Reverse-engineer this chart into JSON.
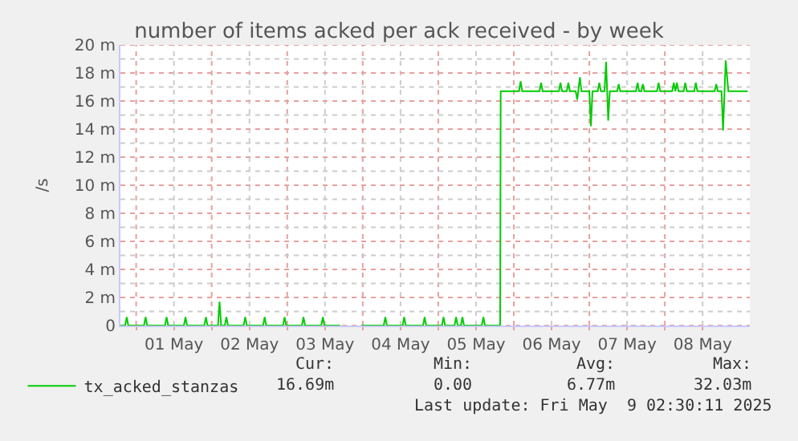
{
  "chart_data": {
    "type": "line",
    "title": "number of items acked per ack received - by week",
    "ylabel": "/s",
    "xlim": [
      "2025-04-30T19:00",
      "2025-05-09T03:00"
    ],
    "xticks": [
      {
        "value": "2025-05-01T00:00",
        "label": null
      },
      {
        "value": "2025-05-01T12:00",
        "label": "01 May"
      },
      {
        "value": "2025-05-02T00:00",
        "label": null
      },
      {
        "value": "2025-05-02T12:00",
        "label": "02 May"
      },
      {
        "value": "2025-05-03T00:00",
        "label": null
      },
      {
        "value": "2025-05-03T12:00",
        "label": "03 May"
      },
      {
        "value": "2025-05-04T00:00",
        "label": null
      },
      {
        "value": "2025-05-04T12:00",
        "label": "04 May"
      },
      {
        "value": "2025-05-05T00:00",
        "label": null
      },
      {
        "value": "2025-05-05T12:00",
        "label": "05 May"
      },
      {
        "value": "2025-05-06T00:00",
        "label": null
      },
      {
        "value": "2025-05-06T12:00",
        "label": "06 May"
      },
      {
        "value": "2025-05-07T00:00",
        "label": null
      },
      {
        "value": "2025-05-07T12:00",
        "label": "07 May"
      },
      {
        "value": "2025-05-08T00:00",
        "label": null
      },
      {
        "value": "2025-05-08T12:00",
        "label": "08 May"
      }
    ],
    "ylim": [
      0,
      20
    ],
    "yticks": [
      0,
      {
        "value": 2,
        "label": "2 m"
      },
      {
        "value": 4,
        "label": "4 m"
      },
      {
        "value": 6,
        "label": "6 m"
      },
      {
        "value": 8,
        "label": "8 m"
      },
      {
        "value": 10,
        "label": "10 m"
      },
      {
        "value": 12,
        "label": "12 m"
      },
      {
        "value": 14,
        "label": "14 m"
      },
      {
        "value": 16,
        "label": "16 m"
      },
      {
        "value": 18,
        "label": "18 m"
      },
      {
        "value": 20,
        "label": "20 m"
      }
    ],
    "grid": true,
    "legend": "bottom left",
    "marker": "none",
    "line_style": "solid",
    "annotations": [
      "Cur:",
      "Min:",
      "Avg:",
      "Max:",
      "16.69m",
      "0.00",
      "6.77m",
      "32.03m",
      "Last update: Fri May  9 02:30:11 2025"
    ],
    "series": [
      {
        "name": "tx_acked_stanzas",
        "color": "#00cc00",
        "x": [
          "2025-04-30T19:00",
          "2025-04-30T20:30",
          "2025-04-30T21:00",
          "2025-04-30T21:30",
          "2025-05-01T02:30",
          "2025-05-01T03:00",
          "2025-05-01T03:30",
          "2025-05-01T09:10",
          "2025-05-01T09:40",
          "2025-05-01T10:10",
          "2025-05-01T15:10",
          "2025-05-01T15:40",
          "2025-05-01T16:10",
          "2025-05-01T21:40",
          "2025-05-01T22:10",
          "2025-05-01T22:40",
          "2025-05-02T02:00",
          "2025-05-02T02:30",
          "2025-05-02T03:00",
          "2025-05-02T04:10",
          "2025-05-02T04:40",
          "2025-05-02T05:10",
          "2025-05-02T10:10",
          "2025-05-02T10:40",
          "2025-05-02T11:10",
          "2025-05-02T16:20",
          "2025-05-02T16:50",
          "2025-05-02T17:20",
          "2025-05-02T22:40",
          "2025-05-02T23:10",
          "2025-05-02T23:40",
          "2025-05-03T04:40",
          "2025-05-03T05:10",
          "2025-05-03T05:40",
          "2025-05-03T10:50",
          "2025-05-03T11:20",
          "2025-05-03T11:50",
          "2025-05-03T16:50",
          "2025-05-03T20:00",
          "2025-05-03T23:30",
          "2025-05-04T06:40",
          "2025-05-04T07:10",
          "2025-05-04T07:40",
          "2025-05-04T12:40",
          "2025-05-04T13:10",
          "2025-05-04T13:40",
          "2025-05-04T19:10",
          "2025-05-04T19:40",
          "2025-05-04T20:10",
          "2025-05-05T01:10",
          "2025-05-05T01:40",
          "2025-05-05T02:10",
          "2025-05-05T05:10",
          "2025-05-05T05:40",
          "2025-05-05T06:10",
          "2025-05-05T07:10",
          "2025-05-05T07:40",
          "2025-05-05T08:10",
          "2025-05-05T13:50",
          "2025-05-05T14:20",
          "2025-05-05T14:50",
          "2025-05-05T19:40",
          "2025-05-05T19:50",
          "2025-05-06T01:40",
          "2025-05-06T02:10",
          "2025-05-06T02:40",
          "2025-05-06T08:10",
          "2025-05-06T08:40",
          "2025-05-06T09:10",
          "2025-05-06T14:20",
          "2025-05-06T14:50",
          "2025-05-06T15:20",
          "2025-05-06T16:50",
          "2025-05-06T17:20",
          "2025-05-06T17:50",
          "2025-05-06T19:40",
          "2025-05-06T20:10",
          "2025-05-06T21:00",
          "2025-05-06T21:30",
          "2025-05-07T00:00",
          "2025-05-07T00:30",
          "2025-05-07T01:00",
          "2025-05-07T02:40",
          "2025-05-07T03:10",
          "2025-05-07T03:40",
          "2025-05-07T04:50",
          "2025-05-07T05:20",
          "2025-05-07T06:00",
          "2025-05-07T06:30",
          "2025-05-07T08:50",
          "2025-05-07T09:20",
          "2025-05-07T09:50",
          "2025-05-07T14:50",
          "2025-05-07T15:20",
          "2025-05-07T15:50",
          "2025-05-07T16:30",
          "2025-05-07T17:00",
          "2025-05-07T17:30",
          "2025-05-07T21:30",
          "2025-05-07T22:00",
          "2025-05-07T22:30",
          "2025-05-08T02:20",
          "2025-05-08T02:50",
          "2025-05-08T03:20",
          "2025-05-08T03:50",
          "2025-05-08T04:20",
          "2025-05-08T06:00",
          "2025-05-08T06:30",
          "2025-05-08T07:00",
          "2025-05-08T09:20",
          "2025-05-08T09:50",
          "2025-05-08T10:20",
          "2025-05-08T15:50",
          "2025-05-08T16:20",
          "2025-05-08T16:50",
          "2025-05-08T18:00",
          "2025-05-08T18:30",
          "2025-05-08T19:20",
          "2025-05-08T20:10",
          "2025-05-09T02:20"
        ],
        "values": [
          0,
          0,
          0.6,
          0,
          0,
          0.6,
          0,
          0,
          0.6,
          0,
          0,
          0.6,
          0,
          0,
          0.6,
          0,
          0,
          1.7,
          0,
          0,
          0.6,
          0,
          0,
          0.6,
          0,
          0,
          0.6,
          0,
          0,
          0.6,
          0,
          0,
          0.6,
          0,
          0,
          0.6,
          0,
          0,
          null,
          0,
          0,
          0.6,
          0,
          0,
          0.6,
          0,
          0,
          0.6,
          0,
          0,
          0.6,
          0,
          0,
          0.6,
          0,
          0,
          0.6,
          0,
          0,
          0.6,
          0,
          0,
          16.7,
          16.7,
          17.4,
          16.7,
          16.7,
          17.3,
          16.7,
          16.7,
          17.3,
          16.7,
          16.7,
          17.3,
          16.7,
          16.7,
          16.1,
          17.7,
          16.7,
          16.7,
          14.2,
          16.7,
          16.7,
          17.3,
          16.7,
          16.7,
          18.8,
          14.6,
          16.7,
          16.7,
          17.2,
          16.7,
          16.7,
          17.3,
          16.7,
          16.7,
          17.2,
          16.7,
          16.7,
          17.3,
          16.7,
          16.7,
          17.3,
          16.7,
          17.3,
          16.7,
          16.7,
          17.3,
          16.7,
          16.7,
          17.3,
          16.7,
          16.7,
          17.2,
          16.7,
          16.7,
          13.9,
          18.9,
          16.7,
          16.7
        ]
      }
    ]
  }
}
